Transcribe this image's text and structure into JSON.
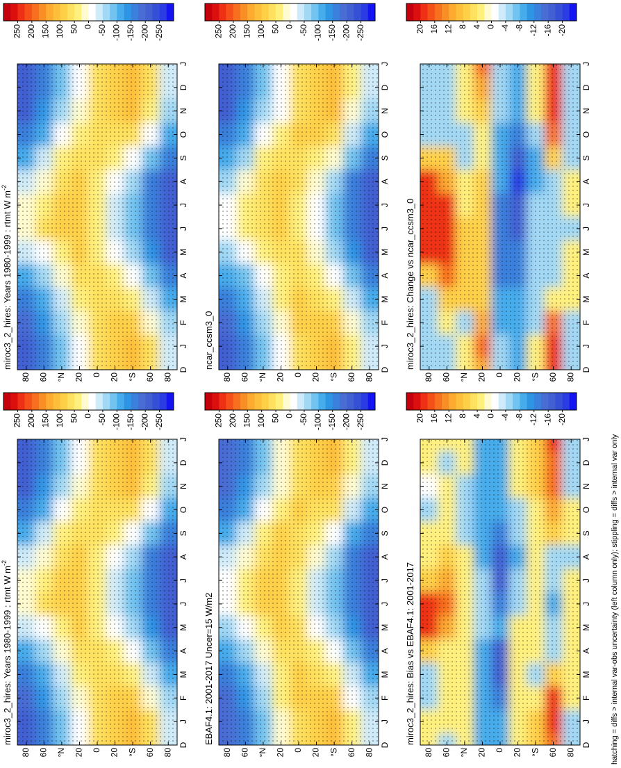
{
  "chart_data": [
    {
      "type": "heatmap",
      "title": "miroc3_2_hires: Years 1980-1999 : rtmt W m",
      "title_sup": "-2",
      "categories": [
        "D",
        "J",
        "F",
        "M",
        "A",
        "M",
        "J",
        "J",
        "A",
        "S",
        "O",
        "N",
        "D",
        "J"
      ],
      "ylim": [
        90,
        -90
      ],
      "yticks": [
        80,
        60,
        {
          "value": 40,
          "label": "°N"
        },
        20,
        0,
        {
          "value": -20,
          "label": "20"
        },
        {
          "value": -40,
          "label": "°S"
        },
        {
          "value": -60,
          "label": "60"
        },
        {
          "value": -80,
          "label": "80"
        }
      ],
      "colorbar": {
        "lim": [
          300,
          -300
        ],
        "ticks": [
          250,
          200,
          150,
          100,
          50,
          0,
          -50,
          -100,
          -150,
          -200,
          -250
        ]
      },
      "values": [
        [
          -200,
          -150,
          -80,
          0,
          60,
          90,
          120,
          60,
          -40
        ],
        [
          -200,
          -150,
          -80,
          0,
          60,
          90,
          120,
          70,
          -30
        ],
        [
          -190,
          -130,
          -60,
          20,
          70,
          80,
          100,
          20,
          -60
        ],
        [
          -150,
          -100,
          -30,
          40,
          70,
          60,
          50,
          -30,
          -120
        ],
        [
          -110,
          -60,
          10,
          60,
          60,
          30,
          0,
          -80,
          -170
        ],
        [
          -40,
          0,
          50,
          80,
          50,
          0,
          -50,
          -130,
          -200
        ],
        [
          20,
          60,
          80,
          90,
          40,
          -30,
          -90,
          -170,
          -220
        ],
        [
          10,
          50,
          80,
          90,
          40,
          -30,
          -90,
          -170,
          -220
        ],
        [
          -40,
          20,
          70,
          90,
          50,
          0,
          -60,
          -150,
          -210
        ],
        [
          -110,
          -40,
          30,
          70,
          60,
          40,
          0,
          -90,
          -170
        ],
        [
          -170,
          -100,
          -20,
          40,
          70,
          70,
          60,
          -20,
          -110
        ],
        [
          -200,
          -140,
          -60,
          10,
          60,
          90,
          110,
          40,
          -60
        ],
        [
          -200,
          -150,
          -80,
          0,
          60,
          90,
          120,
          60,
          -40
        ],
        [
          -200,
          -150,
          -80,
          0,
          60,
          90,
          120,
          70,
          -30
        ]
      ]
    },
    {
      "type": "heatmap",
      "title": "miroc3_2_hires: Years 1980-1999 : rtmt W m",
      "title_sup": "-2",
      "categories": [
        "D",
        "J",
        "F",
        "M",
        "A",
        "M",
        "J",
        "J",
        "A",
        "S",
        "O",
        "N",
        "D",
        "J"
      ],
      "ylim": [
        90,
        -90
      ],
      "yticks": [
        80,
        60,
        {
          "value": 40,
          "label": "°N"
        },
        20,
        0,
        {
          "value": -20,
          "label": "20"
        },
        {
          "value": -40,
          "label": "°S"
        },
        {
          "value": -60,
          "label": "60"
        },
        {
          "value": -80,
          "label": "80"
        }
      ],
      "colorbar": {
        "lim": [
          300,
          -300
        ],
        "ticks": [
          250,
          200,
          150,
          100,
          50,
          0,
          -50,
          -100,
          -150,
          -200,
          -250
        ]
      },
      "values": [
        [
          -200,
          -150,
          -80,
          0,
          60,
          90,
          120,
          60,
          -40
        ],
        [
          -200,
          -150,
          -80,
          0,
          60,
          90,
          120,
          70,
          -30
        ],
        [
          -190,
          -130,
          -60,
          20,
          70,
          80,
          100,
          20,
          -60
        ],
        [
          -150,
          -100,
          -30,
          40,
          70,
          60,
          50,
          -30,
          -120
        ],
        [
          -110,
          -60,
          10,
          60,
          60,
          30,
          0,
          -80,
          -170
        ],
        [
          -40,
          0,
          50,
          80,
          50,
          0,
          -50,
          -130,
          -200
        ],
        [
          20,
          60,
          80,
          90,
          40,
          -30,
          -90,
          -170,
          -220
        ],
        [
          10,
          50,
          80,
          90,
          40,
          -30,
          -90,
          -170,
          -220
        ],
        [
          -40,
          20,
          70,
          90,
          50,
          0,
          -60,
          -150,
          -210
        ],
        [
          -110,
          -40,
          30,
          70,
          60,
          40,
          0,
          -90,
          -170
        ],
        [
          -170,
          -100,
          -20,
          40,
          70,
          70,
          60,
          -20,
          -110
        ],
        [
          -200,
          -140,
          -60,
          10,
          60,
          90,
          110,
          40,
          -60
        ],
        [
          -200,
          -150,
          -80,
          0,
          60,
          90,
          120,
          60,
          -40
        ],
        [
          -200,
          -150,
          -80,
          0,
          60,
          90,
          120,
          70,
          -30
        ]
      ]
    },
    {
      "type": "heatmap",
      "title": "EBAF4.1: 2001-2017 Uncer=15 W/m2",
      "categories": [
        "D",
        "J",
        "F",
        "M",
        "A",
        "M",
        "J",
        "J",
        "A",
        "S",
        "O",
        "N",
        "D",
        "J"
      ],
      "ylim": [
        90,
        -90
      ],
      "yticks": [
        80,
        60,
        {
          "value": 40,
          "label": "°N"
        },
        20,
        0,
        {
          "value": -20,
          "label": "20"
        },
        {
          "value": -40,
          "label": "°S"
        },
        {
          "value": -60,
          "label": "60"
        },
        {
          "value": -80,
          "label": "80"
        }
      ],
      "colorbar": {
        "lim": [
          300,
          -300
        ],
        "ticks": [
          250,
          200,
          150,
          100,
          50,
          0,
          -50,
          -100,
          -150,
          -200,
          -250
        ]
      },
      "values": [
        [
          -190,
          -150,
          -90,
          10,
          70,
          90,
          110,
          40,
          -40
        ],
        [
          -190,
          -150,
          -90,
          10,
          70,
          90,
          110,
          50,
          -30
        ],
        [
          -180,
          -130,
          -60,
          30,
          80,
          80,
          90,
          0,
          -60
        ],
        [
          -150,
          -100,
          -30,
          50,
          80,
          60,
          50,
          -40,
          -120
        ],
        [
          -110,
          -60,
          10,
          70,
          70,
          30,
          0,
          -80,
          -170
        ],
        [
          -60,
          -10,
          50,
          90,
          60,
          0,
          -50,
          -130,
          -200
        ],
        [
          0,
          50,
          80,
          100,
          50,
          -30,
          -90,
          -170,
          -220
        ],
        [
          0,
          40,
          80,
          100,
          50,
          -30,
          -90,
          -170,
          -220
        ],
        [
          -40,
          10,
          70,
          100,
          60,
          10,
          -60,
          -150,
          -210
        ],
        [
          -110,
          -40,
          30,
          80,
          70,
          40,
          0,
          -100,
          -170
        ],
        [
          -170,
          -100,
          -20,
          50,
          80,
          70,
          60,
          -30,
          -110
        ],
        [
          -190,
          -140,
          -60,
          20,
          70,
          90,
          100,
          20,
          -60
        ],
        [
          -190,
          -150,
          -90,
          10,
          70,
          90,
          110,
          40,
          -40
        ],
        [
          -190,
          -150,
          -90,
          10,
          70,
          90,
          110,
          50,
          -30
        ]
      ]
    },
    {
      "type": "heatmap",
      "title": "ncar_ccsm3_0",
      "categories": [
        "D",
        "J",
        "F",
        "M",
        "A",
        "M",
        "J",
        "J",
        "A",
        "S",
        "O",
        "N",
        "D",
        "J"
      ],
      "ylim": [
        90,
        -90
      ],
      "yticks": [
        80,
        60,
        {
          "value": 40,
          "label": "°N"
        },
        20,
        0,
        {
          "value": -20,
          "label": "20"
        },
        {
          "value": -40,
          "label": "°S"
        },
        {
          "value": -60,
          "label": "60"
        },
        {
          "value": -80,
          "label": "80"
        }
      ],
      "colorbar": {
        "lim": [
          300,
          -300
        ],
        "ticks": [
          250,
          200,
          150,
          100,
          50,
          0,
          -50,
          -100,
          -150,
          -200,
          -250
        ]
      },
      "values": [
        [
          -200,
          -150,
          -80,
          -10,
          60,
          100,
          120,
          40,
          -40
        ],
        [
          -200,
          -150,
          -80,
          -10,
          60,
          100,
          120,
          50,
          -30
        ],
        [
          -190,
          -130,
          -60,
          10,
          80,
          90,
          100,
          10,
          -60
        ],
        [
          -150,
          -100,
          -40,
          30,
          80,
          70,
          50,
          -30,
          -120
        ],
        [
          -120,
          -80,
          0,
          50,
          70,
          40,
          0,
          -80,
          -170
        ],
        [
          -60,
          -20,
          40,
          70,
          60,
          10,
          -50,
          -130,
          -200
        ],
        [
          0,
          40,
          70,
          80,
          50,
          -20,
          -90,
          -170,
          -220
        ],
        [
          -10,
          30,
          70,
          80,
          50,
          -20,
          -90,
          -170,
          -220
        ],
        [
          -60,
          10,
          70,
          80,
          60,
          20,
          -50,
          -150,
          -210
        ],
        [
          -120,
          -50,
          30,
          60,
          70,
          50,
          10,
          -90,
          -170
        ],
        [
          -170,
          -100,
          -20,
          30,
          80,
          80,
          60,
          -30,
          -110
        ],
        [
          -200,
          -140,
          -60,
          0,
          70,
          100,
          110,
          20,
          -60
        ],
        [
          -200,
          -150,
          -80,
          -10,
          60,
          100,
          120,
          40,
          -40
        ],
        [
          -200,
          -150,
          -80,
          -10,
          60,
          100,
          120,
          50,
          -30
        ]
      ]
    },
    {
      "type": "heatmap",
      "title": "miroc3_2_hires: Bias vs EBAF4.1: 2001-2017",
      "categories": [
        "D",
        "J",
        "F",
        "M",
        "A",
        "M",
        "J",
        "J",
        "A",
        "S",
        "O",
        "N",
        "D",
        "J"
      ],
      "ylim": [
        90,
        -90
      ],
      "yticks": [
        80,
        60,
        {
          "value": 40,
          "label": "°N"
        },
        20,
        0,
        {
          "value": -20,
          "label": "20"
        },
        {
          "value": -40,
          "label": "°S"
        },
        {
          "value": -60,
          "label": "60"
        },
        {
          "value": -80,
          "label": "80"
        }
      ],
      "colorbar": {
        "lim": [
          24,
          -24
        ],
        "ticks": [
          20,
          16,
          12,
          8,
          4,
          0,
          -4,
          -8,
          -12,
          -16,
          -20
        ]
      },
      "values": [
        [
          4,
          -4,
          4,
          -8,
          -8,
          4,
          8,
          16,
          -4
        ],
        [
          4,
          4,
          4,
          -8,
          -8,
          4,
          8,
          20,
          -4
        ],
        [
          -4,
          4,
          4,
          -8,
          -12,
          4,
          4,
          20,
          4
        ],
        [
          -4,
          4,
          4,
          -8,
          -16,
          4,
          -4,
          8,
          4
        ],
        [
          8,
          4,
          4,
          -8,
          -16,
          4,
          4,
          -4,
          4
        ],
        [
          20,
          12,
          4,
          -4,
          -8,
          4,
          4,
          -4,
          4
        ],
        [
          20,
          16,
          4,
          -4,
          -12,
          -4,
          4,
          -8,
          4
        ],
        [
          8,
          12,
          4,
          -4,
          -16,
          -4,
          4,
          -4,
          4
        ],
        [
          4,
          8,
          4,
          -8,
          -16,
          -8,
          4,
          -4,
          -4
        ],
        [
          4,
          4,
          -4,
          -8,
          -12,
          -4,
          4,
          8,
          4
        ],
        [
          -4,
          4,
          -4,
          -8,
          -8,
          -4,
          4,
          12,
          4
        ],
        [
          0,
          4,
          -4,
          -8,
          -8,
          4,
          8,
          16,
          -4
        ],
        [
          4,
          -4,
          4,
          -8,
          -8,
          4,
          8,
          16,
          -4
        ],
        [
          4,
          4,
          4,
          -8,
          -8,
          4,
          8,
          20,
          -4
        ]
      ]
    },
    {
      "type": "heatmap",
      "title": "miroc3_2_hires: Change vs ncar_ccsm3_0",
      "categories": [
        "D",
        "J",
        "F",
        "M",
        "A",
        "M",
        "J",
        "J",
        "A",
        "S",
        "O",
        "N",
        "D",
        "J"
      ],
      "ylim": [
        90,
        -90
      ],
      "yticks": [
        80,
        60,
        {
          "value": 40,
          "label": "°N"
        },
        20,
        0,
        {
          "value": -20,
          "label": "20"
        },
        {
          "value": -40,
          "label": "°S"
        },
        {
          "value": -60,
          "label": "60"
        },
        {
          "value": -80,
          "label": "80"
        }
      ],
      "colorbar": {
        "lim": [
          24,
          -24
        ],
        "ticks": [
          20,
          16,
          12,
          8,
          4,
          0,
          -4,
          -8,
          -12,
          -16,
          -20
        ]
      },
      "values": [
        [
          -4,
          -4,
          4,
          12,
          -4,
          -8,
          4,
          20,
          -4
        ],
        [
          -4,
          -4,
          4,
          16,
          -4,
          -8,
          4,
          20,
          -4
        ],
        [
          -4,
          4,
          -4,
          12,
          -8,
          -8,
          -4,
          16,
          -4
        ],
        [
          -4,
          8,
          8,
          8,
          -8,
          -8,
          -4,
          4,
          4
        ],
        [
          8,
          16,
          8,
          8,
          -12,
          -12,
          -4,
          -4,
          4
        ],
        [
          20,
          20,
          8,
          8,
          -12,
          -12,
          -4,
          -4,
          4
        ],
        [
          20,
          20,
          8,
          8,
          -12,
          -16,
          -4,
          -4,
          -4
        ],
        [
          20,
          20,
          4,
          8,
          -12,
          -16,
          -4,
          -4,
          4
        ],
        [
          20,
          12,
          4,
          8,
          -8,
          -20,
          -8,
          -4,
          4
        ],
        [
          8,
          8,
          -4,
          4,
          -8,
          -16,
          -8,
          8,
          -4
        ],
        [
          -4,
          -4,
          -4,
          4,
          -8,
          -12,
          -4,
          16,
          -4
        ],
        [
          -4,
          -4,
          4,
          8,
          -4,
          -8,
          4,
          20,
          -4
        ],
        [
          -4,
          -4,
          4,
          12,
          -4,
          -8,
          4,
          20,
          -4
        ],
        [
          -4,
          -4,
          4,
          16,
          -4,
          -8,
          4,
          20,
          -4
        ]
      ]
    }
  ],
  "palette": [
    "#c4000c",
    "#dc0f0f",
    "#ee3014",
    "#f5501a",
    "#f8701f",
    "#fa8e26",
    "#fcaa30",
    "#fdbf3a",
    "#fed048",
    "#fee15e",
    "#fff07e",
    "#fffbd0",
    "#ffffff",
    "#cfeaf8",
    "#a2d8f4",
    "#72c3ef",
    "#46aceb",
    "#2e95e5",
    "#3a80dc",
    "#4a6dd4",
    "#4260d2",
    "#3550d6",
    "#2a3ce2",
    "#1414f0"
  ],
  "footnote": "hatching = diffs > internal var-obs uncertainty (left column only); stippling = diffs > internal var only"
}
